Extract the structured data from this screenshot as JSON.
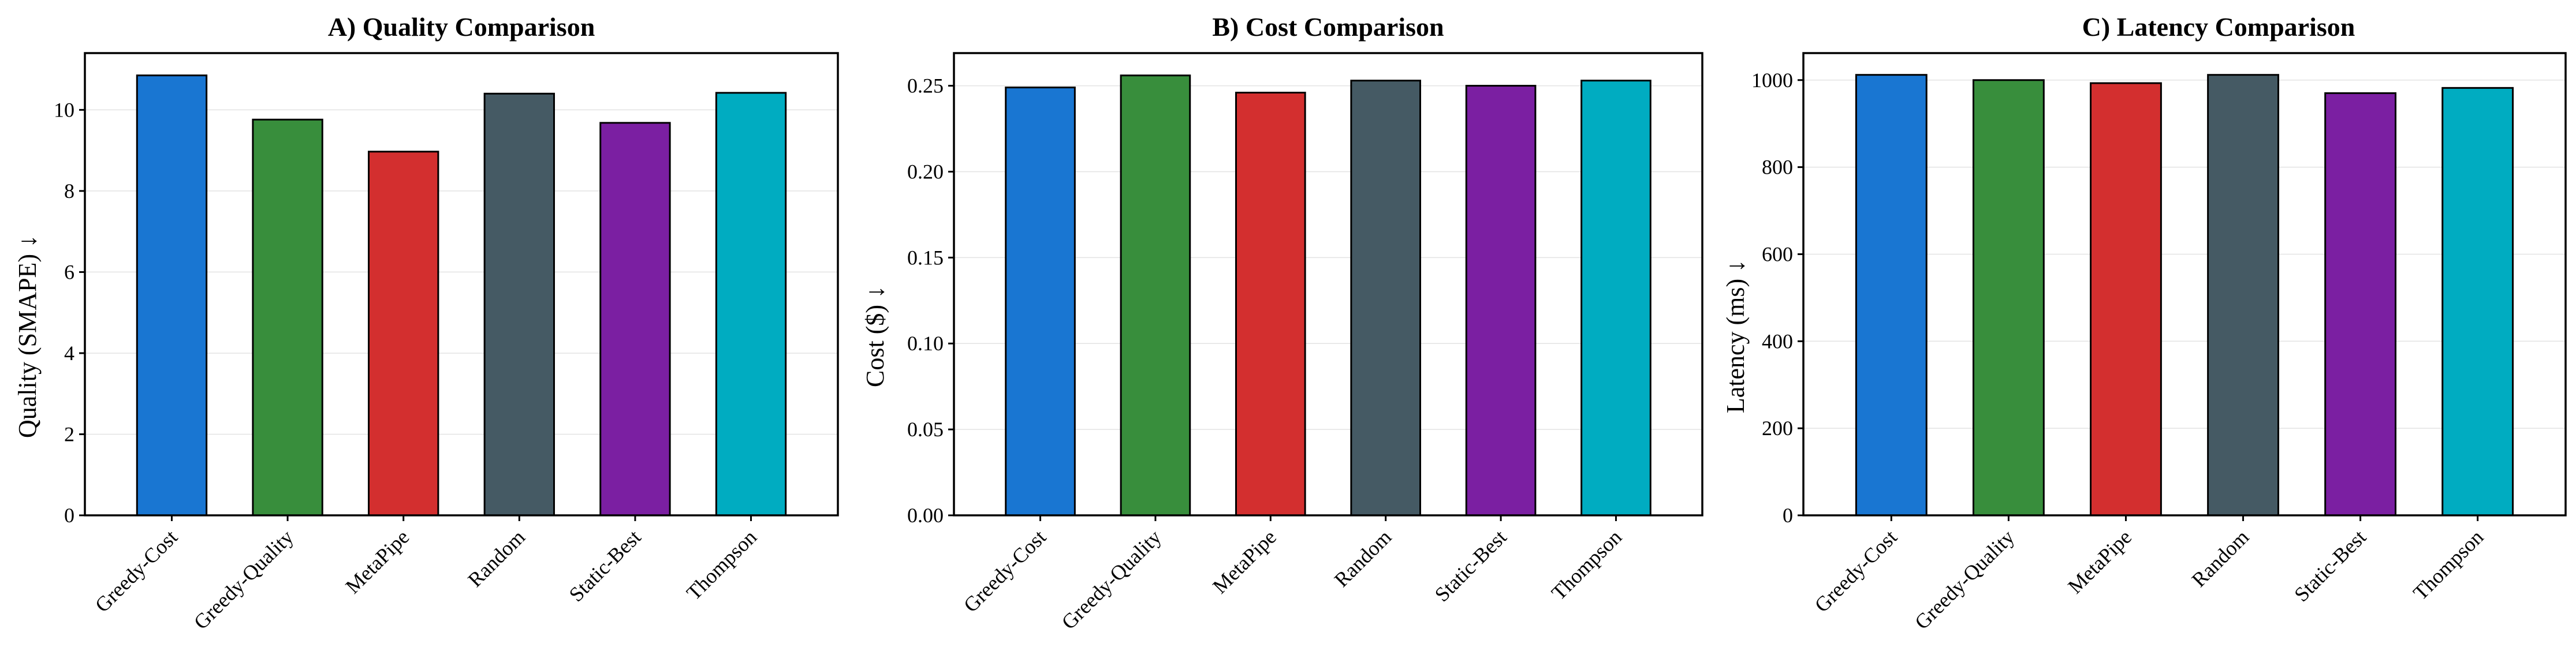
{
  "chart_data": [
    {
      "type": "bar",
      "title": "A) Quality Comparison",
      "xlabel": "",
      "ylabel": "Quality (SMAPE) ↓",
      "categories": [
        "Greedy-Cost",
        "Greedy-Quality",
        "MetaPipe",
        "Random",
        "Static-Best",
        "Thompson"
      ],
      "values": [
        10.85,
        9.76,
        8.97,
        10.4,
        9.68,
        10.42
      ],
      "colors": [
        "#1976d2",
        "#388e3c",
        "#d32f2f",
        "#455a64",
        "#7b1fa2",
        "#00acc1"
      ],
      "ylim": [
        0,
        11.4
      ],
      "yticks": [
        0,
        2,
        4,
        6,
        8,
        10
      ],
      "ytick_labels": [
        "0",
        "2",
        "4",
        "6",
        "8",
        "10"
      ],
      "grid": "y"
    },
    {
      "type": "bar",
      "title": "B) Cost Comparison",
      "xlabel": "",
      "ylabel": "Cost ($) ↓",
      "categories": [
        "Greedy-Cost",
        "Greedy-Quality",
        "MetaPipe",
        "Random",
        "Static-Best",
        "Thompson"
      ],
      "values": [
        0.249,
        0.256,
        0.246,
        0.253,
        0.25,
        0.253
      ],
      "colors": [
        "#1976d2",
        "#388e3c",
        "#d32f2f",
        "#455a64",
        "#7b1fa2",
        "#00acc1"
      ],
      "ylim": [
        0,
        0.269
      ],
      "yticks": [
        0,
        0.05,
        0.1,
        0.15,
        0.2,
        0.25
      ],
      "ytick_labels": [
        "0.00",
        "0.05",
        "0.10",
        "0.15",
        "0.20",
        "0.25"
      ],
      "grid": "y"
    },
    {
      "type": "bar",
      "title": "C) Latency Comparison",
      "xlabel": "",
      "ylabel": "Latency (ms) ↓",
      "categories": [
        "Greedy-Cost",
        "Greedy-Quality",
        "MetaPipe",
        "Random",
        "Static-Best",
        "Thompson"
      ],
      "values": [
        1012,
        1000,
        993,
        1012,
        970,
        982
      ],
      "colors": [
        "#1976d2",
        "#388e3c",
        "#d32f2f",
        "#455a64",
        "#7b1fa2",
        "#00acc1"
      ],
      "ylim": [
        0,
        1062
      ],
      "yticks": [
        0,
        200,
        400,
        600,
        800,
        1000
      ],
      "ytick_labels": [
        "0",
        "200",
        "400",
        "600",
        "800",
        "1000"
      ],
      "grid": "y"
    }
  ]
}
